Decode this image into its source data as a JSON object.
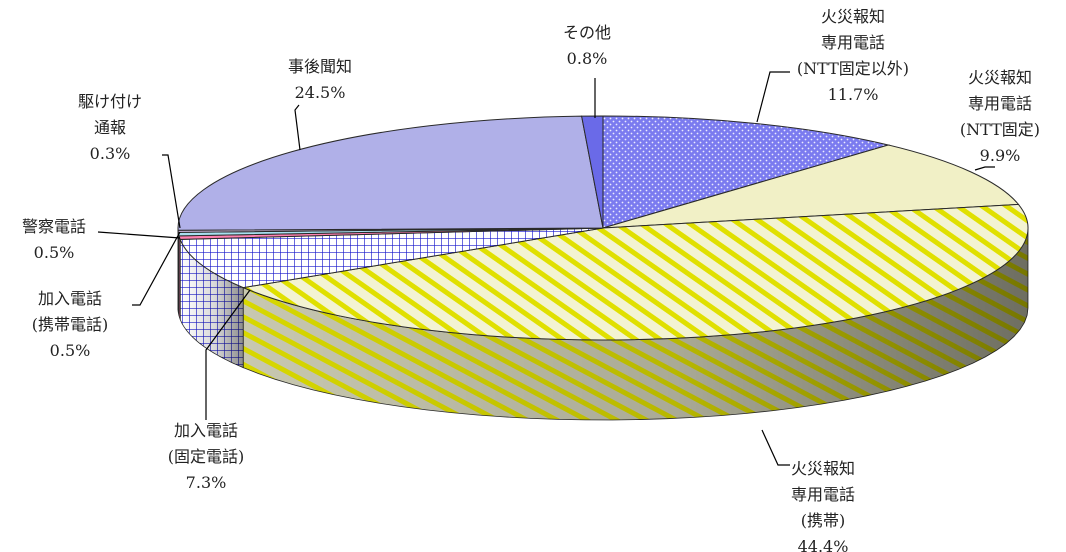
{
  "chart_data": {
    "type": "pie",
    "title": "",
    "slices": [
      {
        "label_lines": [
          "火災報知",
          "専用電話",
          "(NTT固定以外)"
        ],
        "value_text": "11.7%",
        "value": 11.7,
        "color": "#7b7bef",
        "pattern": "dots"
      },
      {
        "label_lines": [
          "火災報知",
          "専用電話",
          "(NTT固定)"
        ],
        "value_text": "9.9%",
        "value": 9.9,
        "color": "#f1f0c6",
        "pattern": "none"
      },
      {
        "label_lines": [
          "火災報知",
          "専用電話",
          "(携帯)"
        ],
        "value_text": "44.4%",
        "value": 44.4,
        "color": "#f3f3d2",
        "pattern": "diagonal"
      },
      {
        "label_lines": [
          "加入電話",
          "(固定電話)"
        ],
        "value_text": "7.3%",
        "value": 7.3,
        "color": "#ffffff",
        "pattern": "grid"
      },
      {
        "label_lines": [
          "加入電話",
          "(携帯電話)"
        ],
        "value_text": "0.5%",
        "value": 0.5,
        "color": "#ff80b0",
        "pattern": "none"
      },
      {
        "label_lines": [
          "警察電話"
        ],
        "value_text": "0.5%",
        "value": 0.5,
        "color": "#a8e0f0",
        "pattern": "none"
      },
      {
        "label_lines": [
          "駆け付け",
          "通報"
        ],
        "value_text": "0.3%",
        "value": 0.3,
        "color": "#d8c0e8",
        "pattern": "none"
      },
      {
        "label_lines": [
          "事後聞知"
        ],
        "value_text": "24.5%",
        "value": 24.5,
        "color": "#b0b0e8",
        "pattern": "none"
      },
      {
        "label_lines": [
          "その他"
        ],
        "value_text": "0.8%",
        "value": 0.8,
        "color": "#6a6ae8",
        "pattern": "none"
      }
    ],
    "colors": {
      "dots_fill": "#7b7bef",
      "dots_mark": "#ffffff",
      "diag_base": "#f3f3d2",
      "diag_stripe": "#e0e000",
      "grid_line": "#1a1acc",
      "grid_base": "#ffffff"
    }
  }
}
